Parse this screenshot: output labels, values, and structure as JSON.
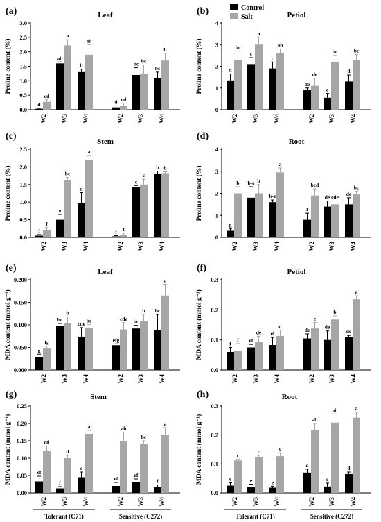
{
  "legend": [
    {
      "name": "Control",
      "color": "#000000"
    },
    {
      "name": "Salt",
      "color": "#a6a6a6"
    }
  ],
  "groups": [
    "Tolerant (C71)",
    "Sensitive (C272)"
  ],
  "chart_data": [
    {
      "panel": "(a)",
      "title": "Leaf",
      "ylabel": "Proline content (%)",
      "type": "bar",
      "ylim": [
        0,
        3.0
      ],
      "yticks": [
        "0.0",
        "0.5",
        "1.0",
        "1.5",
        "2.0",
        "2.5",
        "3.0"
      ],
      "ytick_values": [
        0,
        0.5,
        1.0,
        1.5,
        2.0,
        2.5,
        3.0
      ],
      "categories": [
        "W2",
        "W3",
        "W4",
        "W2",
        "W3",
        "W4"
      ],
      "series": [
        {
          "name": "Control",
          "values": [
            0.03,
            1.6,
            1.3,
            0.08,
            1.2,
            1.1
          ],
          "errors": [
            0.02,
            0.05,
            0.1,
            0.05,
            0.25,
            0.2
          ],
          "labels": [
            "d",
            "ab",
            "b",
            "d",
            "bc",
            "bc"
          ]
        },
        {
          "name": "Salt",
          "values": [
            0.27,
            2.22,
            1.9,
            0.13,
            1.25,
            1.7
          ],
          "errors": [
            0.07,
            0.2,
            0.35,
            0.1,
            0.3,
            0.25
          ],
          "labels": [
            "cd",
            "a",
            "ab",
            "cd",
            "bc",
            "b"
          ]
        }
      ]
    },
    {
      "panel": "(b)",
      "title": "Petiol",
      "ylabel": "Proline content (%)",
      "type": "bar",
      "ylim": [
        0,
        4
      ],
      "yticks": [
        "0",
        "1",
        "2",
        "3",
        "4"
      ],
      "ytick_values": [
        0,
        1,
        2,
        3,
        4
      ],
      "categories": [
        "W2",
        "W3",
        "W4",
        "W2",
        "W3",
        "W4"
      ],
      "series": [
        {
          "name": "Control",
          "values": [
            1.35,
            2.1,
            1.9,
            0.9,
            0.55,
            1.3
          ],
          "errors": [
            0.3,
            0.3,
            0.3,
            0.1,
            0.2,
            0.3
          ],
          "labels": [
            "d",
            "c",
            "c",
            "de",
            "e",
            "d"
          ]
        },
        {
          "name": "Salt",
          "values": [
            2.3,
            3.0,
            2.6,
            1.1,
            2.2,
            2.3
          ],
          "errors": [
            0.4,
            0.35,
            0.2,
            0.35,
            0.3,
            0.25
          ],
          "labels": [
            "bc",
            "a",
            "ab",
            "de",
            "bc",
            "bc"
          ]
        }
      ]
    },
    {
      "panel": "(c)",
      "title": "Stem",
      "ylabel": "Proline content (%)",
      "type": "bar",
      "ylim": [
        0,
        2.5
      ],
      "yticks": [
        "0.0",
        "0.5",
        "1.0",
        "1.5",
        "2.0",
        "2.5"
      ],
      "ytick_values": [
        0,
        0.5,
        1.0,
        1.5,
        2.0,
        2.5
      ],
      "categories": [
        "W2",
        "W3",
        "W4",
        "W2",
        "W3",
        "W4"
      ],
      "series": [
        {
          "name": "Control",
          "values": [
            0.05,
            0.5,
            0.97,
            0.03,
            1.42,
            1.8
          ],
          "errors": [
            0.03,
            0.15,
            0.3,
            0.02,
            0.05,
            0.08
          ],
          "labels": [
            "f",
            "e",
            "d",
            "f",
            "c",
            "b"
          ]
        },
        {
          "name": "Salt",
          "values": [
            0.2,
            1.62,
            2.2,
            0.07,
            1.5,
            1.82
          ],
          "errors": [
            0.08,
            0.08,
            0.12,
            0.05,
            0.15,
            0.04
          ],
          "labels": [
            "f",
            "bc",
            "a",
            "f",
            "c",
            "b"
          ]
        }
      ]
    },
    {
      "panel": "(d)",
      "title": "Root",
      "ylabel": "Proline content (%)",
      "type": "bar",
      "ylim": [
        0,
        4
      ],
      "yticks": [
        "0",
        "1",
        "2",
        "3",
        "4"
      ],
      "ytick_values": [
        0,
        1,
        2,
        3,
        4
      ],
      "categories": [
        "W2",
        "W3",
        "W4",
        "W2",
        "W3",
        "W4"
      ],
      "series": [
        {
          "name": "Control",
          "values": [
            0.3,
            1.8,
            1.6,
            0.8,
            1.4,
            1.5
          ],
          "errors": [
            0.1,
            0.5,
            0.1,
            0.3,
            0.25,
            0.3
          ],
          "labels": [
            "g",
            "b-e",
            "b-e",
            "f",
            "de",
            "de"
          ]
        },
        {
          "name": "Salt",
          "values": [
            2.0,
            2.0,
            2.95,
            1.9,
            1.5,
            1.95
          ],
          "errors": [
            0.3,
            0.4,
            0.2,
            0.3,
            0.15,
            0.15
          ],
          "labels": [
            "b",
            "b",
            "a",
            "bcd",
            "cde",
            "bc"
          ]
        }
      ]
    },
    {
      "panel": "(e)",
      "title": "Leaf",
      "ylabel": "MDA content (mmol g⁻¹)",
      "type": "bar",
      "ylim": [
        0,
        0.2
      ],
      "yticks": [
        "0.000",
        "0.050",
        "0.100",
        "0.150",
        "0.200"
      ],
      "ytick_values": [
        0,
        0.05,
        0.1,
        0.15,
        0.2
      ],
      "categories": [
        "W2",
        "W3",
        "W4",
        "W2",
        "W3",
        "W4"
      ],
      "series": [
        {
          "name": "Control",
          "values": [
            0.028,
            0.098,
            0.074,
            0.055,
            0.092,
            0.088
          ],
          "errors": [
            0.007,
            0.005,
            0.02,
            0.003,
            0.007,
            0.035
          ],
          "labels": [
            "g",
            "bc",
            "cde",
            "efg",
            "bc",
            "bc"
          ]
        },
        {
          "name": "Salt",
          "values": [
            0.048,
            0.103,
            0.094,
            0.09,
            0.108,
            0.165
          ],
          "errors": [
            0.005,
            0.015,
            0.007,
            0.015,
            0.015,
            0.025
          ],
          "labels": [
            "fg",
            "b",
            "bc",
            "cde",
            "b",
            "a"
          ]
        }
      ]
    },
    {
      "panel": "(f)",
      "title": "Petiol",
      "ylabel": "MDA content (mmol g⁻¹)",
      "type": "bar",
      "ylim": [
        0,
        0.3
      ],
      "yticks": [
        "0.0",
        "0.1",
        "0.2",
        "0.3"
      ],
      "ytick_values": [
        0,
        0.1,
        0.2,
        0.3
      ],
      "categories": [
        "W2",
        "W3",
        "W4",
        "W2",
        "W3",
        "W4"
      ],
      "series": [
        {
          "name": "Control",
          "values": [
            0.06,
            0.075,
            0.083,
            0.105,
            0.1,
            0.11
          ],
          "errors": [
            0.015,
            0.01,
            0.025,
            0.015,
            0.03,
            0.005
          ],
          "labels": [
            "f",
            "ef",
            "ef",
            "de",
            "de",
            "de"
          ]
        },
        {
          "name": "Salt",
          "values": [
            0.063,
            0.092,
            0.113,
            0.138,
            0.168,
            0.235
          ],
          "errors": [
            0.025,
            0.02,
            0.02,
            0.02,
            0.012,
            0.012
          ],
          "labels": [
            "f",
            "de",
            "d",
            "c",
            "b",
            "a"
          ]
        }
      ]
    },
    {
      "panel": "(g)",
      "title": "Stem",
      "ylabel": "MDA content (mmol g⁻¹)",
      "type": "bar",
      "ylim": [
        0,
        0.25
      ],
      "yticks": [
        "0.00",
        "0.05",
        "0.10",
        "0.15",
        "0.20",
        "0.25"
      ],
      "ytick_values": [
        0,
        0.05,
        0.1,
        0.15,
        0.2,
        0.25
      ],
      "categories": [
        "W2",
        "W3",
        "W4",
        "W2",
        "W3",
        "W4"
      ],
      "series": [
        {
          "name": "Control",
          "values": [
            0.033,
            0.013,
            0.045,
            0.02,
            0.03,
            0.018
          ],
          "errors": [
            0.015,
            0.005,
            0.015,
            0.01,
            0.01,
            0.005
          ],
          "labels": [
            "ef",
            "f",
            "e",
            "ef",
            "ef",
            "f"
          ]
        },
        {
          "name": "Salt",
          "values": [
            0.12,
            0.1,
            0.17,
            0.15,
            0.14,
            0.168
          ],
          "errors": [
            0.015,
            0.008,
            0.01,
            0.025,
            0.01,
            0.02
          ],
          "labels": [
            "cd",
            "d",
            "a",
            "ab",
            "bc",
            "a"
          ]
        }
      ]
    },
    {
      "panel": "(h)",
      "title": "Root",
      "ylabel": "MDA content (mmol g⁻¹)",
      "type": "bar",
      "ylim": [
        0,
        0.3
      ],
      "yticks": [
        "0.0",
        "0.1",
        "0.2",
        "0.3"
      ],
      "ytick_values": [
        0,
        0.1,
        0.2,
        0.3
      ],
      "categories": [
        "W2",
        "W3",
        "W4",
        "W2",
        "W3",
        "W4"
      ],
      "series": [
        {
          "name": "Control",
          "values": [
            0.025,
            0.02,
            0.018,
            0.07,
            0.022,
            0.065
          ],
          "errors": [
            0.01,
            0.01,
            0.005,
            0.012,
            0.012,
            0.007
          ],
          "labels": [
            "e",
            "e",
            "e",
            "d",
            "e",
            "d"
          ]
        },
        {
          "name": "Salt",
          "values": [
            0.112,
            0.125,
            0.127,
            0.218,
            0.243,
            0.26
          ],
          "errors": [
            0.005,
            0.005,
            0.012,
            0.022,
            0.03,
            0.02
          ],
          "labels": [
            "c",
            "c",
            "c",
            "ab",
            "ab",
            "a"
          ]
        }
      ]
    }
  ]
}
